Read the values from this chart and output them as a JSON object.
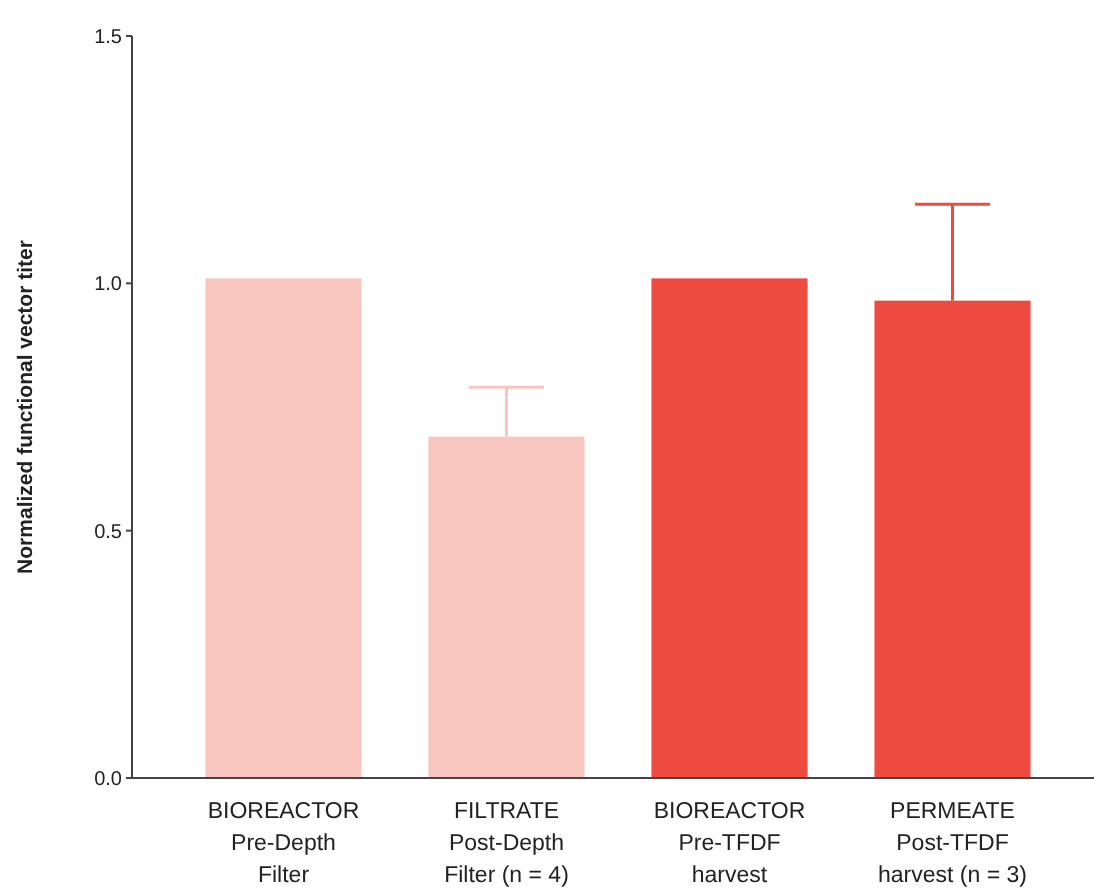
{
  "chart_data": {
    "type": "bar",
    "ylabel": "Normalized functional vector titer",
    "categories": [
      "BIOREACTOR\nPre-Depth\nFilter",
      "FILTRATE\nPost-Depth\nFilter (n = 4)",
      "BIOREACTOR\nPre-TFDF\nharvest",
      "PERMEATE\nPost-TFDF\nharvest (n = 3)"
    ],
    "values": [
      1.01,
      0.69,
      1.01,
      0.965
    ],
    "colors": [
      "#f8c6bf",
      "#f8c6bf",
      "#ee4a40",
      "#ee4a40"
    ],
    "errors": [
      null,
      [
        0.69,
        0.79
      ],
      null,
      [
        0.965,
        1.16
      ]
    ],
    "ylim": [
      0,
      1.5
    ],
    "yticks": [
      {
        "value": 0,
        "label": "0.0"
      },
      {
        "value": 0.5,
        "label": "0.5"
      },
      {
        "value": 1,
        "label": "1.0"
      },
      {
        "value": 1.5,
        "label": "1.5"
      }
    ],
    "grid": false
  }
}
